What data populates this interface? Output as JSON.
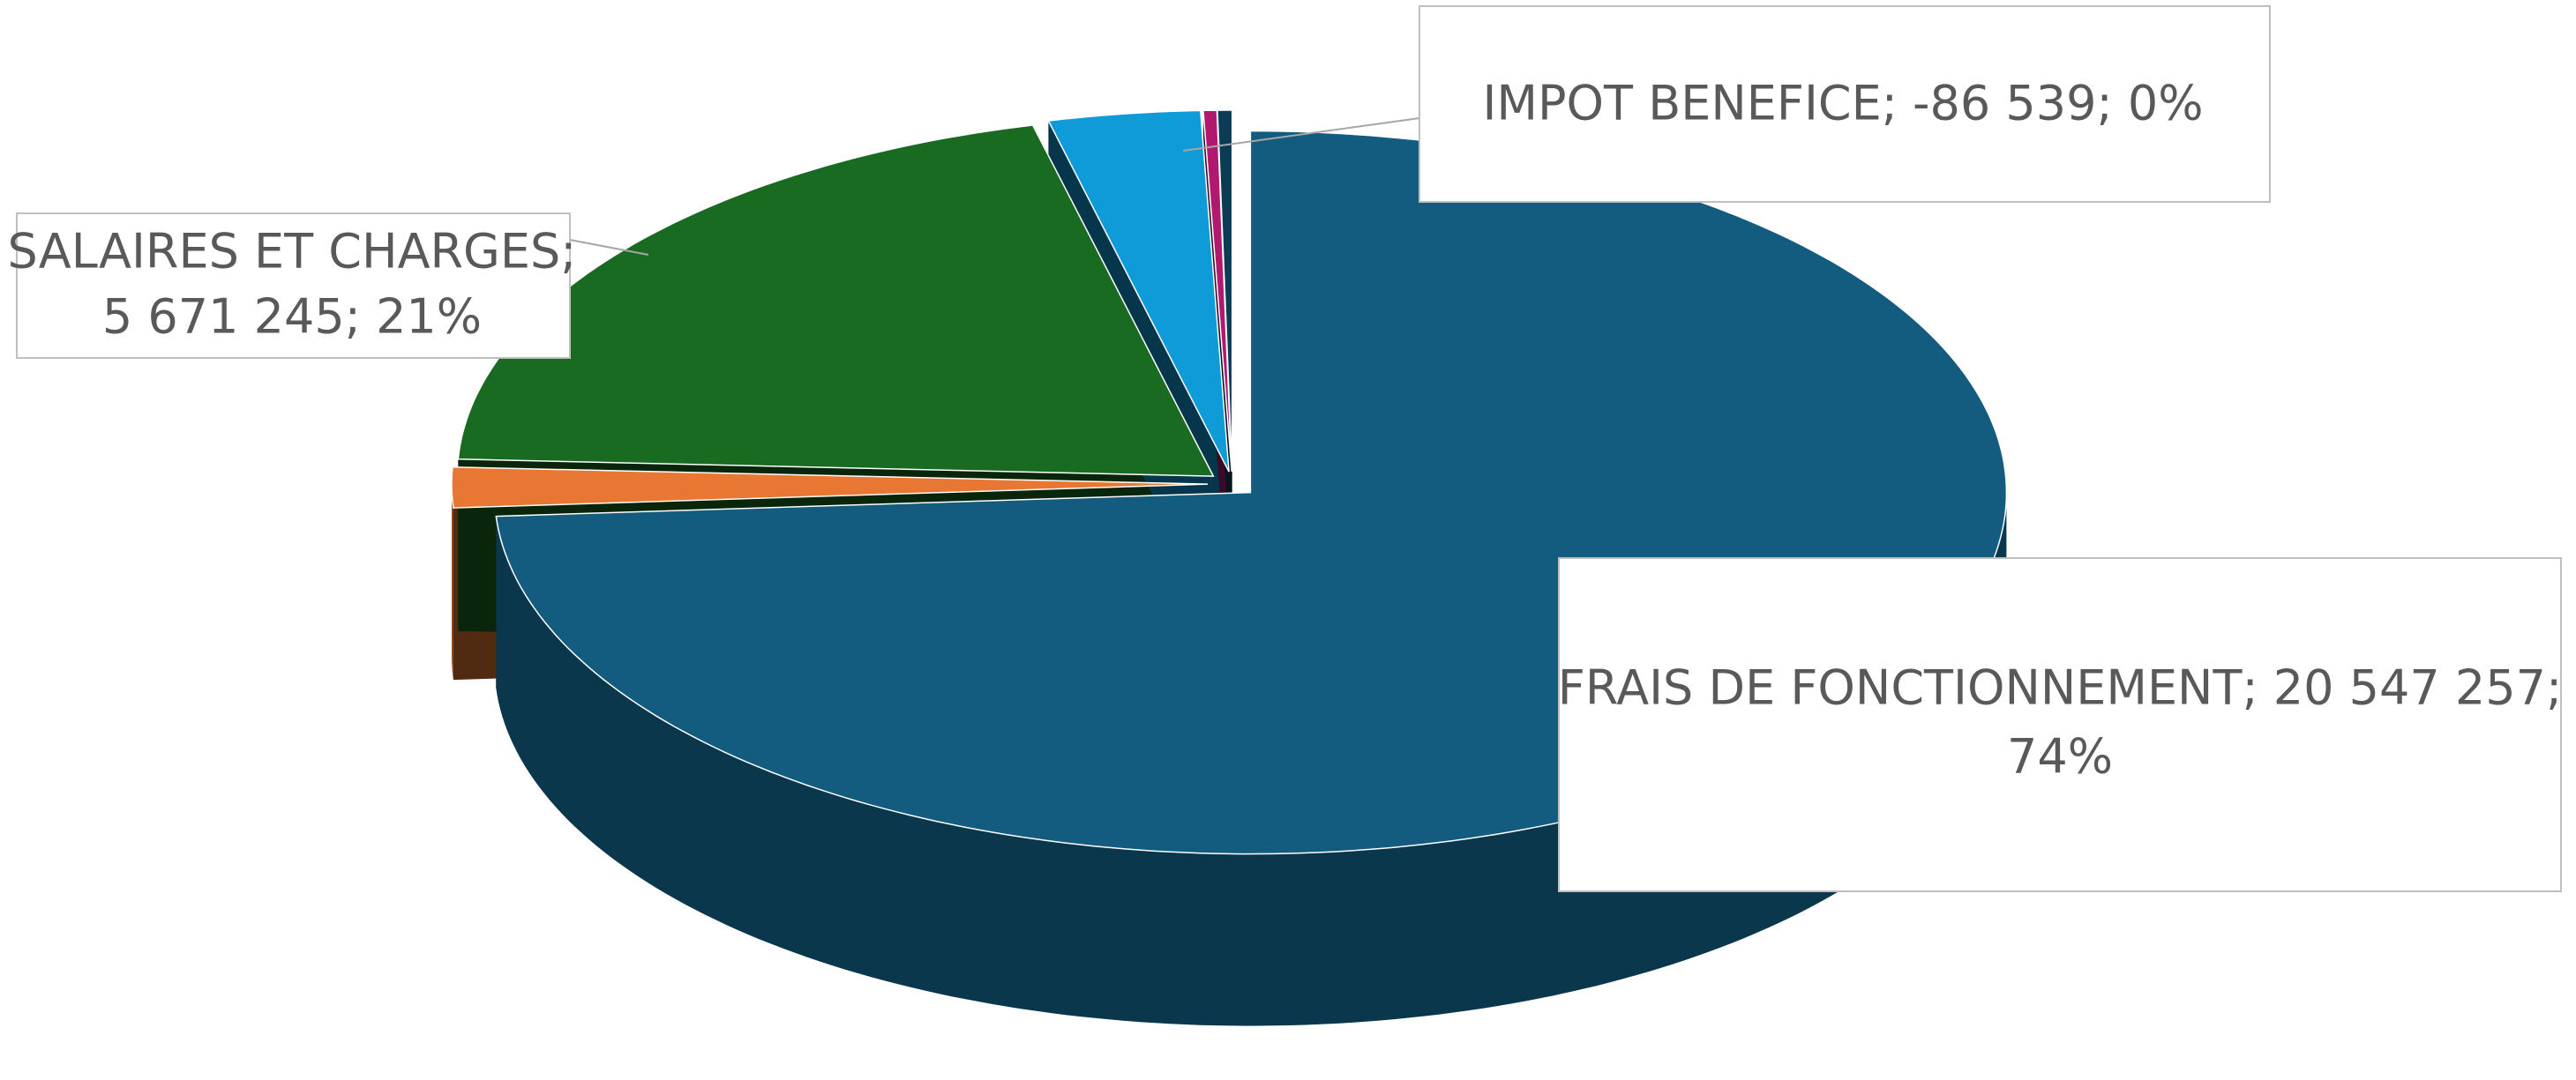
{
  "chart_data": {
    "type": "pie3d",
    "categories": [
      "FRAIS DE FONCTIONNEMENT",
      null,
      "SALAIRES ET CHARGES",
      null,
      null,
      "IMPOT BENEFICE"
    ],
    "values": [
      20547257,
      500000,
      5671245,
      900000,
      80000,
      -86539
    ],
    "data_labels": [
      [
        "FRAIS DE FONCTIONNEMENT; 20 547 257;",
        "74%"
      ],
      null,
      [
        "SALAIRES ET CHARGES;",
        "5 671 245; 21%"
      ],
      null,
      null,
      [
        "IMPOT BENEFICE; -86 539; 0%"
      ]
    ],
    "colors": [
      "#135c7f",
      "#e87733",
      "#1a6b22",
      "#0f9bd7",
      "#b0196e",
      "#0b3b55"
    ]
  }
}
